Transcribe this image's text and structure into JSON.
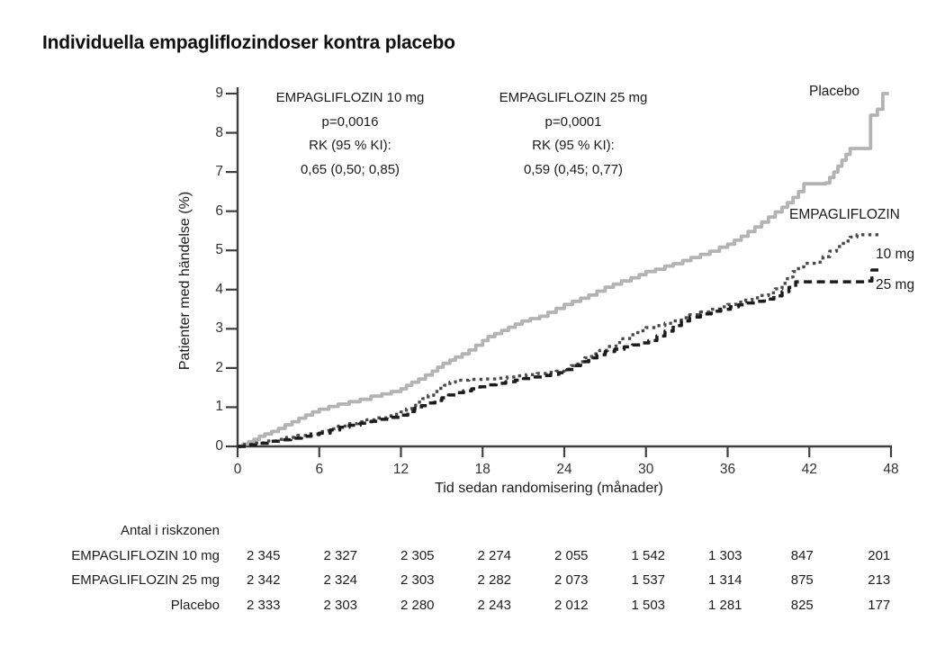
{
  "title": "Individuella empagliflozindoser kontra placebo",
  "annotations": [
    {
      "lines": [
        "EMPAGLIFLOZIN 10 mg",
        "p=0,0016",
        "RK (95 % KI):",
        "0,65 (0,50; 0,85)"
      ]
    },
    {
      "lines": [
        "EMPAGLIFLOZIN 25 mg",
        "p=0,0001",
        "RK (95 % KI):",
        "0,59 (0,45; 0,77)"
      ]
    }
  ],
  "curve_labels": {
    "placebo": "Placebo",
    "group": "EMPAGLIFLOZIN",
    "dose10": "10 mg",
    "dose25": "25 mg"
  },
  "risk_table": {
    "header": "Antal i riskzonen",
    "rows": [
      {
        "label": "EMPAGLIFLOZIN 10 mg",
        "values": [
          "2 345",
          "2 327",
          "2 305",
          "2 274",
          "2 055",
          "1 542",
          "1 303",
          "847",
          "201"
        ]
      },
      {
        "label": "EMPAGLIFLOZIN 25 mg",
        "values": [
          "2 342",
          "2 324",
          "2 303",
          "2 282",
          "2 073",
          "1 537",
          "1 314",
          "875",
          "213"
        ]
      },
      {
        "label": "Placebo",
        "values": [
          "2 333",
          "2 303",
          "2 280",
          "2 243",
          "2 012",
          "1 503",
          "1 281",
          "825",
          "177"
        ]
      }
    ]
  },
  "chart_data": {
    "type": "line",
    "subtype": "kaplan-meier-step",
    "title": "Individuella empagliflozindoser kontra placebo",
    "xlabel": "Tid sedan randomisering (månader)",
    "ylabel": "Patienter med händelse (%)",
    "xlim": [
      0,
      48
    ],
    "ylim": [
      0,
      9
    ],
    "xticks": [
      0,
      6,
      12,
      18,
      24,
      30,
      36,
      42,
      48
    ],
    "yticks": [
      0,
      1,
      2,
      3,
      4,
      5,
      6,
      7,
      8,
      9
    ],
    "grid": false,
    "axis_color": "#3f3f3f",
    "series": [
      {
        "name": "Placebo",
        "style": "solid",
        "color": "#b3b3b3",
        "width": 3.8,
        "dash": "none",
        "points": [
          [
            0,
            0
          ],
          [
            0.4,
            0.06
          ],
          [
            0.8,
            0.12
          ],
          [
            1.2,
            0.18
          ],
          [
            1.6,
            0.26
          ],
          [
            2,
            0.32
          ],
          [
            2.5,
            0.38
          ],
          [
            3,
            0.46
          ],
          [
            3.5,
            0.55
          ],
          [
            4,
            0.63
          ],
          [
            4.5,
            0.72
          ],
          [
            5,
            0.8
          ],
          [
            5.5,
            0.88
          ],
          [
            6,
            0.95
          ],
          [
            6.7,
            1.02
          ],
          [
            7.4,
            1.08
          ],
          [
            8.2,
            1.14
          ],
          [
            9,
            1.2
          ],
          [
            9.8,
            1.28
          ],
          [
            10.6,
            1.34
          ],
          [
            11.3,
            1.4
          ],
          [
            12,
            1.47
          ],
          [
            12.4,
            1.56
          ],
          [
            12.8,
            1.64
          ],
          [
            13.3,
            1.72
          ],
          [
            13.8,
            1.82
          ],
          [
            14.3,
            1.92
          ],
          [
            14.7,
            2.02
          ],
          [
            15.1,
            2.12
          ],
          [
            15.6,
            2.2
          ],
          [
            16,
            2.28
          ],
          [
            16.5,
            2.36
          ],
          [
            17,
            2.46
          ],
          [
            17.5,
            2.58
          ],
          [
            18,
            2.7
          ],
          [
            18.4,
            2.8
          ],
          [
            18.9,
            2.88
          ],
          [
            19.4,
            2.96
          ],
          [
            19.9,
            3.04
          ],
          [
            20.4,
            3.12
          ],
          [
            20.9,
            3.2
          ],
          [
            21.5,
            3.26
          ],
          [
            22.2,
            3.32
          ],
          [
            22.8,
            3.42
          ],
          [
            23.4,
            3.52
          ],
          [
            24,
            3.62
          ],
          [
            24.6,
            3.7
          ],
          [
            25.2,
            3.78
          ],
          [
            25.8,
            3.86
          ],
          [
            26.4,
            3.96
          ],
          [
            27,
            4.06
          ],
          [
            27.6,
            4.14
          ],
          [
            28.2,
            4.22
          ],
          [
            28.9,
            4.3
          ],
          [
            29.5,
            4.38
          ],
          [
            30,
            4.46
          ],
          [
            30.7,
            4.52
          ],
          [
            31.4,
            4.6
          ],
          [
            32,
            4.66
          ],
          [
            32.7,
            4.74
          ],
          [
            33.3,
            4.82
          ],
          [
            34,
            4.9
          ],
          [
            34.7,
            4.98
          ],
          [
            35.4,
            5.08
          ],
          [
            36,
            5.16
          ],
          [
            36.5,
            5.26
          ],
          [
            37,
            5.36
          ],
          [
            37.5,
            5.48
          ],
          [
            38,
            5.6
          ],
          [
            38.5,
            5.72
          ],
          [
            39,
            5.85
          ],
          [
            39.5,
            5.98
          ],
          [
            40,
            6.1
          ],
          [
            40.4,
            6.22
          ],
          [
            40.8,
            6.35
          ],
          [
            41.2,
            6.5
          ],
          [
            41.6,
            6.7
          ],
          [
            43.2,
            6.72
          ],
          [
            43.5,
            6.86
          ],
          [
            43.8,
            7.0
          ],
          [
            44.1,
            7.15
          ],
          [
            44.4,
            7.3
          ],
          [
            44.7,
            7.45
          ],
          [
            45,
            7.6
          ],
          [
            46.5,
            8.45
          ],
          [
            47,
            8.6
          ],
          [
            47.4,
            9.0
          ],
          [
            47.85,
            9.0
          ]
        ]
      },
      {
        "name": "EMPAGLIFLOZIN 10 mg",
        "style": "dotted",
        "color": "#4a4a4a",
        "width": 3.4,
        "dash": "3.4 4.4",
        "points": [
          [
            0,
            0
          ],
          [
            0.5,
            0.05
          ],
          [
            1.2,
            0.09
          ],
          [
            2,
            0.14
          ],
          [
            2.8,
            0.18
          ],
          [
            3.6,
            0.23
          ],
          [
            4.4,
            0.28
          ],
          [
            5.2,
            0.32
          ],
          [
            6,
            0.38
          ],
          [
            6.7,
            0.45
          ],
          [
            7.4,
            0.52
          ],
          [
            8.1,
            0.58
          ],
          [
            8.8,
            0.63
          ],
          [
            9.5,
            0.68
          ],
          [
            10.2,
            0.73
          ],
          [
            11,
            0.78
          ],
          [
            11.5,
            0.82
          ],
          [
            12,
            0.88
          ],
          [
            12.4,
            0.96
          ],
          [
            12.8,
            1.05
          ],
          [
            13.2,
            1.13
          ],
          [
            13.6,
            1.22
          ],
          [
            14,
            1.3
          ],
          [
            14.4,
            1.4
          ],
          [
            14.8,
            1.48
          ],
          [
            15.2,
            1.56
          ],
          [
            15.6,
            1.64
          ],
          [
            16,
            1.69
          ],
          [
            17,
            1.71
          ],
          [
            18,
            1.72
          ],
          [
            19,
            1.74
          ],
          [
            19.8,
            1.77
          ],
          [
            20.5,
            1.8
          ],
          [
            21.2,
            1.83
          ],
          [
            22,
            1.86
          ],
          [
            22.7,
            1.89
          ],
          [
            23.4,
            1.92
          ],
          [
            24,
            1.97
          ],
          [
            24.5,
            2.06
          ],
          [
            25,
            2.16
          ],
          [
            25.5,
            2.26
          ],
          [
            26,
            2.36
          ],
          [
            26.6,
            2.45
          ],
          [
            27.2,
            2.55
          ],
          [
            27.8,
            2.65
          ],
          [
            28.3,
            2.75
          ],
          [
            28.8,
            2.85
          ],
          [
            29.4,
            2.95
          ],
          [
            30,
            3.03
          ],
          [
            30.7,
            3.08
          ],
          [
            31.4,
            3.14
          ],
          [
            32,
            3.2
          ],
          [
            32.6,
            3.28
          ],
          [
            33.2,
            3.36
          ],
          [
            34,
            3.43
          ],
          [
            34.7,
            3.5
          ],
          [
            35.4,
            3.56
          ],
          [
            36,
            3.62
          ],
          [
            36.6,
            3.68
          ],
          [
            37.2,
            3.73
          ],
          [
            37.8,
            3.79
          ],
          [
            38.4,
            3.85
          ],
          [
            39,
            3.92
          ],
          [
            39.5,
            4.02
          ],
          [
            40,
            4.16
          ],
          [
            40.4,
            4.32
          ],
          [
            40.8,
            4.46
          ],
          [
            41.2,
            4.58
          ],
          [
            41.6,
            4.67
          ],
          [
            42.5,
            4.7
          ],
          [
            43,
            4.84
          ],
          [
            43.5,
            4.98
          ],
          [
            44,
            5.1
          ],
          [
            44.5,
            5.24
          ],
          [
            45,
            5.34
          ],
          [
            45.5,
            5.4
          ],
          [
            47.3,
            5.42
          ]
        ]
      },
      {
        "name": "EMPAGLIFLOZIN 25 mg",
        "style": "dashed",
        "color": "#1c1c1c",
        "width": 3.5,
        "dash": "9 5.5",
        "points": [
          [
            0,
            0
          ],
          [
            0.7,
            0.04
          ],
          [
            1.5,
            0.08
          ],
          [
            2.3,
            0.13
          ],
          [
            3.1,
            0.17
          ],
          [
            3.9,
            0.21
          ],
          [
            4.7,
            0.26
          ],
          [
            5.4,
            0.3
          ],
          [
            6,
            0.34
          ],
          [
            6.8,
            0.42
          ],
          [
            7.5,
            0.49
          ],
          [
            8.2,
            0.54
          ],
          [
            9,
            0.59
          ],
          [
            9.8,
            0.64
          ],
          [
            10.5,
            0.69
          ],
          [
            11.3,
            0.74
          ],
          [
            12,
            0.8
          ],
          [
            12.5,
            0.89
          ],
          [
            13,
            0.97
          ],
          [
            13.5,
            1.04
          ],
          [
            14,
            1.11
          ],
          [
            14.5,
            1.17
          ],
          [
            15,
            1.24
          ],
          [
            15.5,
            1.31
          ],
          [
            16,
            1.37
          ],
          [
            16.6,
            1.42
          ],
          [
            17.2,
            1.47
          ],
          [
            17.8,
            1.52
          ],
          [
            18.4,
            1.57
          ],
          [
            19,
            1.61
          ],
          [
            19.7,
            1.65
          ],
          [
            20.4,
            1.69
          ],
          [
            21,
            1.73
          ],
          [
            21.7,
            1.77
          ],
          [
            22.4,
            1.81
          ],
          [
            23,
            1.84
          ],
          [
            23.6,
            1.88
          ],
          [
            24.2,
            1.96
          ],
          [
            24.7,
            2.06
          ],
          [
            25.2,
            2.16
          ],
          [
            25.8,
            2.26
          ],
          [
            26.4,
            2.34
          ],
          [
            27,
            2.42
          ],
          [
            27.7,
            2.48
          ],
          [
            28.4,
            2.54
          ],
          [
            29,
            2.59
          ],
          [
            29.6,
            2.64
          ],
          [
            30.2,
            2.7
          ],
          [
            30.8,
            2.82
          ],
          [
            31.4,
            2.94
          ],
          [
            32,
            3.08
          ],
          [
            32.6,
            3.2
          ],
          [
            33.2,
            3.3
          ],
          [
            34,
            3.38
          ],
          [
            34.8,
            3.45
          ],
          [
            35.5,
            3.5
          ],
          [
            36.2,
            3.56
          ],
          [
            36.8,
            3.61
          ],
          [
            37.4,
            3.66
          ],
          [
            38,
            3.7
          ],
          [
            38.7,
            3.76
          ],
          [
            39.4,
            3.84
          ],
          [
            40,
            3.95
          ],
          [
            40.5,
            4.06
          ],
          [
            41,
            4.2
          ],
          [
            46.3,
            4.22
          ],
          [
            46.6,
            4.5
          ],
          [
            47.2,
            4.5
          ]
        ]
      }
    ]
  }
}
